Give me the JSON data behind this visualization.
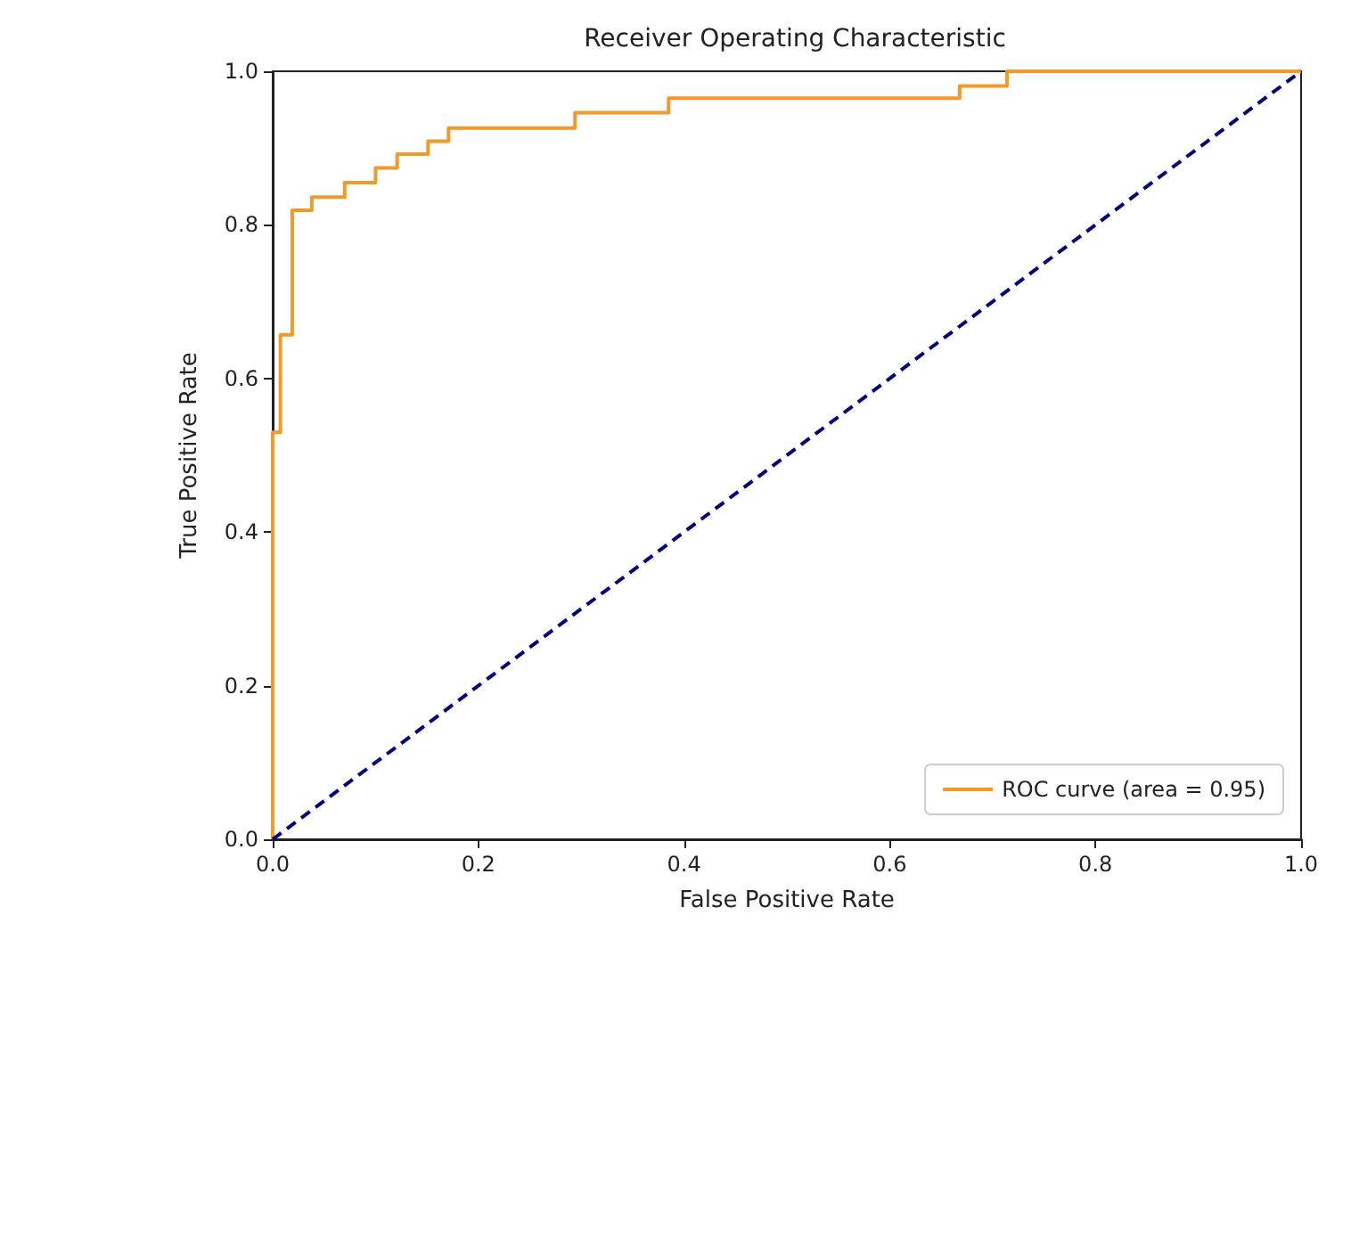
{
  "chart_data": {
    "type": "line",
    "title": "Receiver Operating Characteristic",
    "xlabel": "False Positive Rate",
    "ylabel": "True Positive Rate",
    "series": [
      {
        "name": "ROC curve (area = 0.95)",
        "color": "#f09a2a",
        "line_style": "solid",
        "x": [
          0,
          0,
          0.0075,
          0.0075,
          0.019,
          0.019,
          0.038,
          0.038,
          0.07,
          0.07,
          0.1,
          0.1,
          0.121,
          0.121,
          0.151,
          0.151,
          0.171,
          0.171,
          0.294,
          0.294,
          0.385,
          0.385,
          0.668,
          0.668,
          0.714,
          0.714,
          1
        ],
        "values": [
          0,
          0.53,
          0.53,
          0.657,
          0.657,
          0.819,
          0.819,
          0.836,
          0.836,
          0.855,
          0.855,
          0.874,
          0.874,
          0.892,
          0.892,
          0.909,
          0.909,
          0.926,
          0.926,
          0.946,
          0.946,
          0.965,
          0.965,
          0.981,
          0.981,
          1,
          1
        ]
      },
      {
        "color": "#000080",
        "line_style": "dashed",
        "x": [
          0,
          1
        ],
        "values": [
          0,
          1
        ]
      }
    ],
    "xlim": [
      0,
      1
    ],
    "ylim": [
      0,
      1
    ],
    "xticks": [
      {
        "value": 0,
        "label": "0.0"
      },
      {
        "value": 0.2,
        "label": "0.2"
      },
      {
        "value": 0.4,
        "label": "0.4"
      },
      {
        "value": 0.6,
        "label": "0.6"
      },
      {
        "value": 0.8,
        "label": "0.8"
      },
      {
        "value": 1,
        "label": "1.0"
      }
    ],
    "yticks": [
      {
        "value": 0,
        "label": "0.0"
      },
      {
        "value": 0.2,
        "label": "0.2"
      },
      {
        "value": 0.4,
        "label": "0.4"
      },
      {
        "value": 0.6,
        "label": "0.6"
      },
      {
        "value": 0.8,
        "label": "0.8"
      },
      {
        "value": 1,
        "label": "1.0"
      }
    ],
    "legend": "bottom right",
    "marker": "none",
    "grid": false
  }
}
